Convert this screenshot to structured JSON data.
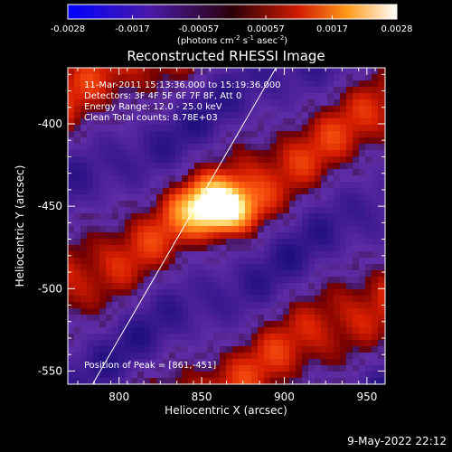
{
  "chart_data": {
    "type": "heatmap",
    "title": "Reconstructed RHESSI Image",
    "xlabel": "Heliocentric X (arcsec)",
    "ylabel": "Heliocentric Y (arcsec)",
    "x_ticks": [
      "800",
      "850",
      "900",
      "950"
    ],
    "x_tick_values": [
      800,
      850,
      900,
      950
    ],
    "y_ticks": [
      "-400",
      "-450",
      "-500",
      "-550"
    ],
    "y_tick_values": [
      -400,
      -450,
      -500,
      -550
    ],
    "xlim": [
      769,
      961
    ],
    "ylim": [
      -558,
      -366
    ],
    "colorbar": {
      "ticks": [
        "-0.0028",
        "-0.0017",
        "-0.00057",
        "0.00057",
        "0.0017",
        "0.0028"
      ],
      "range": [
        -0.0028,
        0.0028
      ],
      "unit_main": "(photons cm",
      "unit_sup1": "-2",
      "unit_s": " s",
      "unit_sup2": "-1",
      "unit_asec": " asec",
      "unit_sup3": "-2",
      "unit_close": ")"
    },
    "annotations": [
      "11-Mar-2011 15:13:36.000 to 15:19:36.000",
      "Detectors: 3F 4F 5F 6F 7F 8F, Att 0",
      "Energy Range: 12.0 - 25.0 keV",
      "Clean    Total counts: 8.78E+03"
    ],
    "peak_label": "Position of Peak = [861,-451]",
    "peak": {
      "x": 861,
      "y": -451
    },
    "limb_line": [
      {
        "x": 784,
        "y": -558
      },
      {
        "x": 895,
        "y": -366
      }
    ],
    "footer_date": "9-May-2022 22:12",
    "colors": {
      "background": "#000000",
      "limb": "#ffffff"
    }
  }
}
